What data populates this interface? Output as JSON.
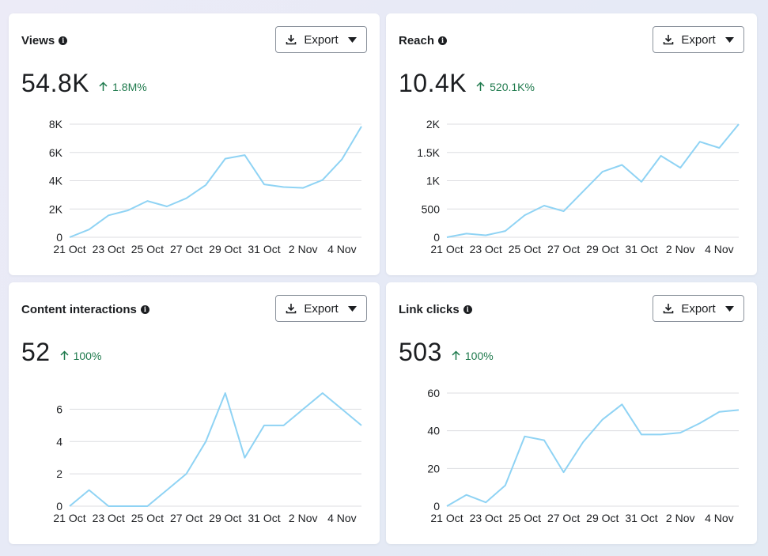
{
  "colors": {
    "line": "#8fd3f4",
    "grid": "#dcdde1",
    "positive": "#1f7a4d"
  },
  "export_label": "Export",
  "cards": [
    {
      "title": "Views",
      "value": "54.8K",
      "change": "1.8M%",
      "chart_data": {
        "type": "line",
        "x": [
          "21 Oct",
          "22 Oct",
          "23 Oct",
          "24 Oct",
          "25 Oct",
          "26 Oct",
          "27 Oct",
          "28 Oct",
          "29 Oct",
          "30 Oct",
          "31 Oct",
          "1 Nov",
          "2 Nov",
          "3 Nov",
          "4 Nov",
          "5 Nov"
        ],
        "values": [
          0,
          550,
          1550,
          1900,
          2570,
          2180,
          2760,
          3700,
          5560,
          5810,
          3740,
          3550,
          3490,
          4050,
          5520,
          7840
        ],
        "x_ticks": [
          "21 Oct",
          "23 Oct",
          "25 Oct",
          "27 Oct",
          "29 Oct",
          "31 Oct",
          "2 Nov",
          "4 Nov"
        ],
        "y_ticks": [
          0,
          2000,
          4000,
          6000,
          8000
        ],
        "y_tick_labels": [
          "0",
          "2K",
          "4K",
          "6K",
          "8K"
        ],
        "ylim": [
          0,
          8000
        ],
        "grid": true
      }
    },
    {
      "title": "Reach",
      "value": "10.4K",
      "change": "520.1K%",
      "chart_data": {
        "type": "line",
        "x": [
          "21 Oct",
          "22 Oct",
          "23 Oct",
          "24 Oct",
          "25 Oct",
          "26 Oct",
          "27 Oct",
          "28 Oct",
          "29 Oct",
          "30 Oct",
          "31 Oct",
          "1 Nov",
          "2 Nov",
          "3 Nov",
          "4 Nov",
          "5 Nov"
        ],
        "values": [
          0,
          65,
          35,
          110,
          390,
          560,
          460,
          810,
          1160,
          1280,
          980,
          1440,
          1230,
          1690,
          1580,
          2000
        ],
        "x_ticks": [
          "21 Oct",
          "23 Oct",
          "25 Oct",
          "27 Oct",
          "29 Oct",
          "31 Oct",
          "2 Nov",
          "4 Nov"
        ],
        "y_ticks": [
          0,
          500,
          1000,
          1500,
          2000
        ],
        "y_tick_labels": [
          "0",
          "500",
          "1K",
          "1.5K",
          "2K"
        ],
        "ylim": [
          0,
          2000
        ],
        "grid": true
      }
    },
    {
      "title": "Content interactions",
      "value": "52",
      "change": "100%",
      "chart_data": {
        "type": "line",
        "x": [
          "21 Oct",
          "22 Oct",
          "23 Oct",
          "24 Oct",
          "25 Oct",
          "26 Oct",
          "27 Oct",
          "28 Oct",
          "29 Oct",
          "30 Oct",
          "31 Oct",
          "1 Nov",
          "2 Nov",
          "3 Nov",
          "4 Nov",
          "5 Nov"
        ],
        "values": [
          0,
          1,
          0,
          0,
          0,
          1,
          2,
          4,
          7,
          3,
          5,
          5,
          6,
          7,
          6,
          5
        ],
        "x_ticks": [
          "21 Oct",
          "23 Oct",
          "25 Oct",
          "27 Oct",
          "29 Oct",
          "31 Oct",
          "2 Nov",
          "4 Nov"
        ],
        "y_ticks": [
          0,
          2,
          4,
          6
        ],
        "y_tick_labels": [
          "0",
          "2",
          "4",
          "6"
        ],
        "ylim": [
          0,
          7
        ],
        "grid": true
      }
    },
    {
      "title": "Link clicks",
      "value": "503",
      "change": "100%",
      "chart_data": {
        "type": "line",
        "x": [
          "21 Oct",
          "22 Oct",
          "23 Oct",
          "24 Oct",
          "25 Oct",
          "26 Oct",
          "27 Oct",
          "28 Oct",
          "29 Oct",
          "30 Oct",
          "31 Oct",
          "1 Nov",
          "2 Nov",
          "3 Nov",
          "4 Nov",
          "5 Nov"
        ],
        "values": [
          0,
          6,
          2,
          11,
          37,
          35,
          18,
          34,
          46,
          54,
          38,
          38,
          39,
          44,
          50,
          51
        ],
        "x_ticks": [
          "21 Oct",
          "23 Oct",
          "25 Oct",
          "27 Oct",
          "29 Oct",
          "31 Oct",
          "2 Nov",
          "4 Nov"
        ],
        "y_ticks": [
          0,
          20,
          40,
          60
        ],
        "y_tick_labels": [
          "0",
          "20",
          "40",
          "60"
        ],
        "ylim": [
          0,
          60
        ],
        "grid": true
      }
    }
  ]
}
